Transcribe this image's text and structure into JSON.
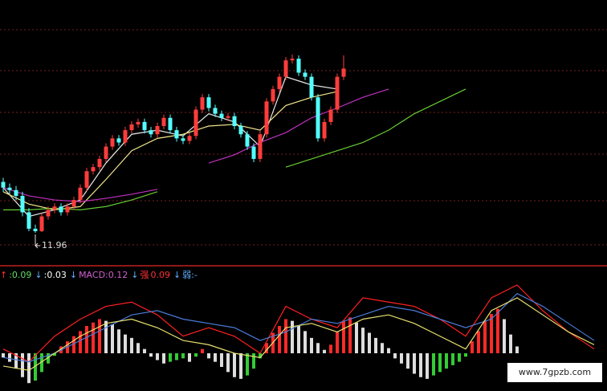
{
  "chart_data": [
    {
      "type": "candlestick",
      "up_color": "#ff3c3c",
      "down_color": "#54ffff",
      "candles": [
        [
          13.2,
          13.3,
          12.96,
          13.06
        ],
        [
          13.06,
          13.16,
          12.9,
          13.0
        ],
        [
          13.0,
          13.1,
          12.76,
          12.86
        ],
        [
          12.86,
          12.96,
          12.36,
          12.46
        ],
        [
          12.46,
          12.56,
          12.0,
          12.06
        ],
        [
          12.06,
          12.16,
          11.96,
          12.0
        ],
        [
          12.0,
          12.44,
          11.98,
          12.36
        ],
        [
          12.36,
          12.6,
          12.28,
          12.52
        ],
        [
          12.52,
          12.68,
          12.44,
          12.6
        ],
        [
          12.6,
          12.68,
          12.38,
          12.46
        ],
        [
          12.46,
          12.68,
          12.38,
          12.6
        ],
        [
          12.6,
          12.84,
          12.52,
          12.76
        ],
        [
          12.76,
          13.14,
          12.68,
          13.06
        ],
        [
          13.06,
          13.54,
          12.98,
          13.46
        ],
        [
          13.46,
          13.64,
          13.38,
          13.56
        ],
        [
          13.56,
          13.84,
          13.48,
          13.76
        ],
        [
          13.76,
          14.14,
          13.68,
          14.06
        ],
        [
          14.06,
          14.34,
          13.98,
          14.26
        ],
        [
          14.26,
          14.34,
          14.08,
          14.16
        ],
        [
          14.16,
          14.54,
          14.08,
          14.46
        ],
        [
          14.46,
          14.68,
          14.38,
          14.6
        ],
        [
          14.6,
          14.74,
          14.52,
          14.66
        ],
        [
          14.66,
          14.74,
          14.38,
          14.46
        ],
        [
          14.46,
          14.54,
          14.28,
          14.36
        ],
        [
          14.36,
          14.64,
          14.28,
          14.56
        ],
        [
          14.56,
          14.84,
          14.48,
          14.76
        ],
        [
          14.76,
          14.84,
          14.38,
          14.46
        ],
        [
          14.46,
          14.54,
          14.18,
          14.26
        ],
        [
          14.26,
          14.34,
          14.12,
          14.2
        ],
        [
          14.2,
          14.4,
          14.12,
          14.32
        ],
        [
          14.32,
          15.04,
          14.24,
          14.96
        ],
        [
          14.96,
          15.34,
          14.88,
          15.26
        ],
        [
          15.26,
          15.34,
          14.92,
          15.0
        ],
        [
          15.0,
          15.08,
          14.78,
          14.86
        ],
        [
          14.86,
          14.94,
          14.68,
          14.76
        ],
        [
          14.76,
          14.88,
          14.68,
          14.8
        ],
        [
          14.8,
          14.88,
          14.48,
          14.56
        ],
        [
          14.56,
          14.64,
          14.28,
          14.36
        ],
        [
          14.36,
          14.44,
          13.98,
          14.06
        ],
        [
          14.06,
          14.14,
          13.68,
          13.76
        ],
        [
          13.76,
          14.44,
          13.68,
          14.36
        ],
        [
          14.36,
          15.24,
          14.28,
          15.16
        ],
        [
          15.16,
          15.54,
          15.08,
          15.46
        ],
        [
          15.46,
          15.84,
          15.38,
          15.76
        ],
        [
          15.76,
          16.24,
          15.68,
          16.16
        ],
        [
          16.16,
          16.3,
          16.08,
          16.2
        ],
        [
          16.2,
          16.28,
          15.78,
          15.86
        ],
        [
          15.86,
          15.94,
          15.68,
          15.76
        ],
        [
          15.76,
          15.84,
          15.18,
          15.26
        ],
        [
          15.26,
          15.34,
          14.18,
          14.26
        ],
        [
          14.26,
          14.74,
          14.18,
          14.66
        ],
        [
          14.66,
          15.04,
          14.58,
          14.96
        ],
        [
          14.96,
          15.84,
          14.88,
          15.76
        ],
        [
          15.76,
          16.28,
          15.68,
          15.96
        ]
      ],
      "ma_x": [
        0,
        4,
        8,
        12,
        16,
        20,
        24,
        28,
        32,
        36,
        40,
        44,
        48,
        52,
        56,
        60,
        64,
        68,
        72
      ],
      "lines": [
        {
          "color": "#e8e8e8",
          "values": [
            13.06,
            12.36,
            12.52,
            12.76,
            13.66,
            14.36,
            14.46,
            14.32,
            14.86,
            14.66,
            14.06,
            15.76,
            15.56,
            15.46,
            null,
            null,
            null,
            null,
            null
          ]
        },
        {
          "color": "#f0e68c",
          "values": [
            12.96,
            12.66,
            12.52,
            12.6,
            13.26,
            13.96,
            14.26,
            14.36,
            14.56,
            14.6,
            14.46,
            15.06,
            15.26,
            15.4,
            null,
            null,
            null,
            null,
            null
          ]
        },
        {
          "color": "#c030c0",
          "values": [
            13.06,
            12.86,
            12.76,
            12.72,
            12.8,
            12.9,
            13.02,
            null,
            13.66,
            13.86,
            14.16,
            14.4,
            14.76,
            15.0,
            15.26,
            15.46,
            null,
            null,
            null
          ]
        },
        {
          "color": "#66cc33",
          "values": [
            12.52,
            12.52,
            12.56,
            12.52,
            12.6,
            12.76,
            12.96,
            null,
            null,
            null,
            null,
            13.56,
            13.76,
            13.96,
            14.16,
            14.46,
            14.86,
            15.16,
            15.46
          ]
        }
      ]
    },
    {
      "type": "macd",
      "up_rising_color": "#ff2a2a",
      "fading_color": "#dddddd",
      "down_rising_color": "#33cc33",
      "values": [
        -0.02,
        -0.04,
        -0.072,
        -0.112,
        -0.14,
        -0.128,
        -0.088,
        -0.048,
        -0.012,
        0.032,
        0.056,
        0.08,
        0.104,
        0.128,
        0.144,
        0.16,
        0.152,
        0.136,
        0.112,
        0.088,
        0.072,
        0.048,
        0.02,
        -0.016,
        -0.032,
        -0.048,
        -0.04,
        -0.032,
        -0.024,
        -0.04,
        -0.016,
        0.02,
        -0.024,
        -0.04,
        -0.064,
        -0.088,
        -0.112,
        -0.12,
        -0.104,
        -0.072,
        -0.024,
        0.048,
        0.096,
        0.128,
        0.16,
        0.152,
        0.128,
        0.104,
        0.072,
        0.048,
        0.016,
        0.04,
        0.1,
        0.152,
        0.168,
        0.144,
        0.12,
        0.096,
        0.072,
        0.048,
        0.024,
        -0.024,
        -0.048,
        -0.072,
        -0.096,
        -0.112,
        -0.12,
        -0.104,
        -0.088,
        -0.072,
        -0.056,
        -0.04,
        -0.016,
        0.056,
        0.104,
        0.152,
        0.184,
        0.208,
        0.16,
        0.088,
        0.032
      ],
      "line_x": [
        0,
        4,
        8,
        12,
        16,
        20,
        24,
        28,
        32,
        36,
        40,
        44,
        48,
        52,
        56,
        60,
        64,
        68,
        72,
        76,
        80,
        84,
        88,
        92
      ],
      "lines": [
        {
          "color": "#ff2020",
          "values": [
            0.02,
            -0.04,
            0.08,
            0.16,
            0.22,
            0.24,
            0.18,
            0.08,
            0.12,
            0.08,
            0,
            0.22,
            0.16,
            0.12,
            0.26,
            0.24,
            0.22,
            0.16,
            0.08,
            0.26,
            0.32,
            0.2,
            0.1,
            0.02
          ]
        },
        {
          "color": "#4a7bd8",
          "values": [
            -0.02,
            -0.04,
            0,
            0.06,
            0.12,
            0.18,
            0.2,
            0.16,
            0.14,
            0.12,
            0.06,
            0.1,
            0.16,
            0.14,
            0.18,
            0.22,
            0.2,
            0.16,
            0.12,
            0.16,
            0.28,
            0.22,
            0.14,
            0.06
          ]
        },
        {
          "color": "#e8e070",
          "values": [
            -0.06,
            -0.08,
            0,
            0.08,
            0.14,
            0.16,
            0.12,
            0.06,
            0.04,
            0,
            -0.02,
            0.12,
            0.14,
            0.1,
            0.16,
            0.18,
            0.14,
            0.08,
            0.02,
            0.2,
            0.26,
            0.18,
            0.1,
            0.04
          ]
        }
      ],
      "legend": [
        {
          "text": "↑",
          "color": "#ff3030"
        },
        {
          "text": ":0.09",
          "color": "#66dd66"
        },
        {
          "text": "↓",
          "color": "#5fb0ff"
        },
        {
          "text": ":0.03",
          "color": "#ffffff"
        },
        {
          "text": "↓",
          "color": "#5fb0ff"
        },
        {
          "text": "MACD:0.12",
          "color": "#d060d0"
        },
        {
          "text": "↓",
          "color": "#5fb0ff"
        },
        {
          "text": "强",
          "color": "#ff3030"
        },
        {
          "text": "0.09",
          "color": "#ff3030"
        },
        {
          "text": "↓",
          "color": "#5fb0ff"
        },
        {
          "text": "弱:-",
          "color": "#5fb0ff"
        }
      ],
      "watermark": "www.7gpzb.com"
    }
  ]
}
